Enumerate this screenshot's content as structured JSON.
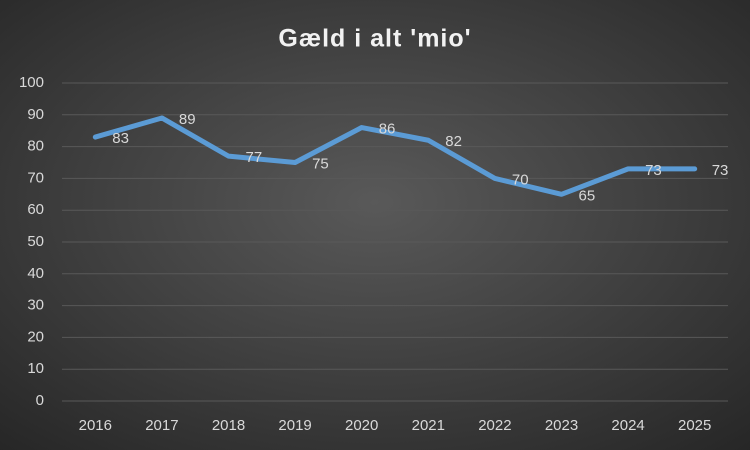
{
  "chart_data": {
    "type": "line",
    "title": "Gæld i alt 'mio'",
    "categories": [
      "2016",
      "2017",
      "2018",
      "2019",
      "2020",
      "2021",
      "2022",
      "2023",
      "2024",
      "2025"
    ],
    "series": [
      {
        "name": "Gæld i alt 'mio'",
        "color": "#5b9bd5",
        "values": [
          83,
          89,
          77,
          75,
          86,
          82,
          70,
          65,
          73,
          73
        ]
      }
    ],
    "ylim": [
      0,
      100
    ],
    "yticks": [
      0,
      10,
      20,
      30,
      40,
      50,
      60,
      70,
      80,
      90,
      100
    ],
    "grid": true
  }
}
